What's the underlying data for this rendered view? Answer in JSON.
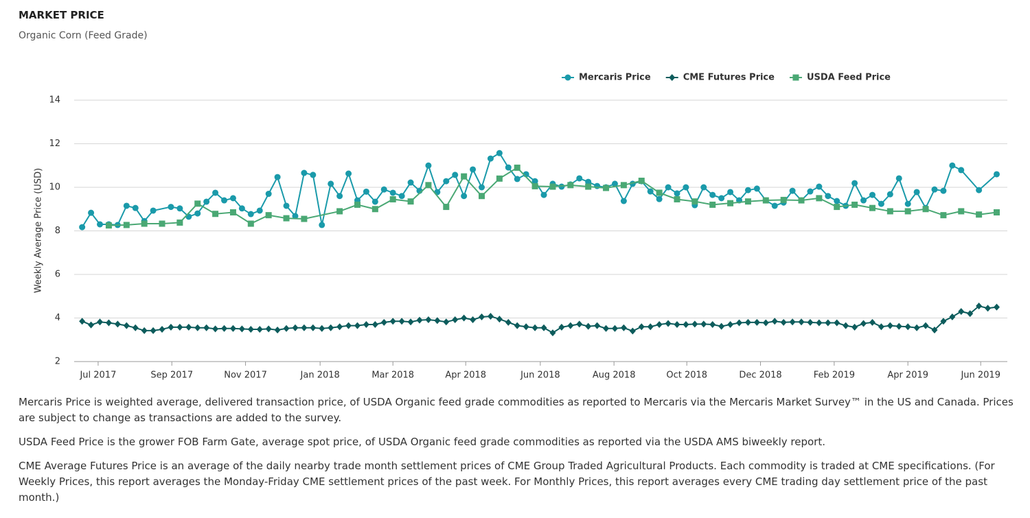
{
  "header": {
    "title": "MARKET PRICE",
    "subtitle": "Organic Corn (Feed Grade)"
  },
  "chart_data": {
    "type": "line",
    "y_label": "Weekly Average Price (USD)",
    "grid": true,
    "xlim": [
      -0.9,
      104.2
    ],
    "ylim": [
      2,
      14
    ],
    "yticks": [
      2,
      4,
      6,
      8,
      10,
      12,
      14
    ],
    "xticks": [
      {
        "value": 1.8,
        "label": "Jul 2017"
      },
      {
        "value": 10.1,
        "label": "Sep 2017"
      },
      {
        "value": 18.4,
        "label": "Nov 2017"
      },
      {
        "value": 26.8,
        "label": "Jan 2018"
      },
      {
        "value": 35.0,
        "label": "Mar 2018"
      },
      {
        "value": 43.2,
        "label": "Apr 2018"
      },
      {
        "value": 51.6,
        "label": "Jun 2018"
      },
      {
        "value": 59.9,
        "label": "Aug 2018"
      },
      {
        "value": 68.1,
        "label": "Oct 2018"
      },
      {
        "value": 76.4,
        "label": "Dec 2018"
      },
      {
        "value": 84.7,
        "label": "Feb 2019"
      },
      {
        "value": 93.0,
        "label": "Apr 2019"
      },
      {
        "value": 101.2,
        "label": "Jun 2019"
      }
    ],
    "series": [
      {
        "name": "Mercaris Price",
        "color": "#1a9aaa",
        "marker": "circle",
        "x": [
          0,
          1,
          2,
          3,
          4,
          5,
          6,
          7,
          8,
          10,
          11,
          12,
          13,
          14,
          15,
          16,
          17,
          18,
          19,
          20,
          21,
          22,
          23,
          24,
          25,
          26,
          27,
          28,
          29,
          30,
          31,
          32,
          33,
          34,
          35,
          36,
          37,
          38,
          39,
          40,
          41,
          42,
          43,
          44,
          45,
          46,
          47,
          48,
          49,
          50,
          51,
          52,
          53,
          54,
          55,
          56,
          57,
          58,
          59,
          60,
          61,
          62,
          63,
          64,
          65,
          66,
          67,
          68,
          69,
          70,
          71,
          72,
          73,
          74,
          75,
          76,
          77,
          78,
          79,
          80,
          81,
          82,
          83,
          84,
          85,
          86,
          87,
          88,
          89,
          90,
          91,
          92,
          93,
          94,
          95,
          96,
          97,
          98,
          99,
          101,
          103
        ],
        "values": [
          8.17,
          8.83,
          8.3,
          8.3,
          8.27,
          9.15,
          9.05,
          8.45,
          8.93,
          9.1,
          9.03,
          8.65,
          8.8,
          9.34,
          9.75,
          9.4,
          9.5,
          9.03,
          8.77,
          8.93,
          9.7,
          10.47,
          9.15,
          8.68,
          10.66,
          10.57,
          8.27,
          10.16,
          9.6,
          10.63,
          9.4,
          9.8,
          9.34,
          9.9,
          9.75,
          9.6,
          10.22,
          9.84,
          11,
          9.78,
          10.28,
          10.57,
          9.6,
          10.82,
          10,
          11.32,
          11.57,
          10.91,
          10.38,
          10.6,
          10.28,
          9.65,
          10.16,
          10.03,
          10.13,
          10.41,
          10.25,
          10.06,
          10,
          10.16,
          9.37,
          10.16,
          10.28,
          9.81,
          9.46,
          10,
          9.72,
          10,
          9.18,
          10,
          9.65,
          9.5,
          9.78,
          9.4,
          9.87,
          9.94,
          9.4,
          9.15,
          9.3,
          9.84,
          9.4,
          9.81,
          10.03,
          9.6,
          9.37,
          9.15,
          10.19,
          9.4,
          9.65,
          9.24,
          9.68,
          10.41,
          9.24,
          9.78,
          9.05,
          9.9,
          9.84,
          11,
          10.79,
          9.87,
          10.6
        ]
      },
      {
        "name": "CME Futures Price",
        "color": "#0d5c5c",
        "marker": "diamond",
        "x": [
          0,
          1,
          2,
          3,
          4,
          5,
          6,
          7,
          8,
          9,
          10,
          11,
          12,
          13,
          14,
          15,
          16,
          17,
          18,
          19,
          20,
          21,
          22,
          23,
          24,
          25,
          26,
          27,
          28,
          29,
          30,
          31,
          32,
          33,
          34,
          35,
          36,
          37,
          38,
          39,
          40,
          41,
          42,
          43,
          44,
          45,
          46,
          47,
          48,
          49,
          50,
          51,
          52,
          53,
          54,
          55,
          56,
          57,
          58,
          59,
          60,
          61,
          62,
          63,
          64,
          65,
          66,
          67,
          68,
          69,
          70,
          71,
          72,
          73,
          74,
          75,
          76,
          77,
          78,
          79,
          80,
          81,
          82,
          83,
          84,
          85,
          86,
          87,
          88,
          89,
          90,
          91,
          92,
          93,
          94,
          95,
          96,
          97,
          98,
          99,
          100,
          101,
          102,
          103
        ],
        "values": [
          3.85,
          3.68,
          3.82,
          3.78,
          3.72,
          3.65,
          3.55,
          3.42,
          3.42,
          3.48,
          3.58,
          3.58,
          3.58,
          3.55,
          3.55,
          3.5,
          3.52,
          3.52,
          3.5,
          3.48,
          3.48,
          3.5,
          3.45,
          3.52,
          3.55,
          3.55,
          3.55,
          3.52,
          3.55,
          3.6,
          3.65,
          3.65,
          3.7,
          3.7,
          3.8,
          3.85,
          3.85,
          3.82,
          3.9,
          3.92,
          3.88,
          3.82,
          3.92,
          4,
          3.92,
          4.05,
          4.08,
          3.95,
          3.8,
          3.65,
          3.6,
          3.55,
          3.55,
          3.32,
          3.58,
          3.65,
          3.72,
          3.62,
          3.65,
          3.52,
          3.52,
          3.55,
          3.4,
          3.6,
          3.6,
          3.7,
          3.75,
          3.7,
          3.7,
          3.72,
          3.72,
          3.7,
          3.62,
          3.7,
          3.78,
          3.8,
          3.8,
          3.78,
          3.85,
          3.8,
          3.82,
          3.82,
          3.8,
          3.78,
          3.78,
          3.78,
          3.65,
          3.58,
          3.75,
          3.8,
          3.6,
          3.65,
          3.62,
          3.6,
          3.55,
          3.65,
          3.45,
          3.85,
          4.05,
          4.3,
          4.2,
          4.55,
          4.45,
          4.5
        ]
      },
      {
        "name": "USDA Feed Price",
        "color": "#4aa874",
        "marker": "square",
        "x": [
          3,
          5,
          7,
          9,
          11,
          13,
          15,
          17,
          19,
          21,
          23,
          25,
          29,
          31,
          33,
          35,
          37,
          39,
          41,
          43,
          45,
          47,
          49,
          51,
          53,
          55,
          57,
          59,
          61,
          63,
          65,
          67,
          69,
          71,
          73,
          75,
          77,
          79,
          81,
          83,
          85,
          87,
          89,
          91,
          93,
          95,
          97,
          99,
          101,
          103
        ],
        "values": [
          8.25,
          8.27,
          8.33,
          8.33,
          8.38,
          9.25,
          8.78,
          8.85,
          8.33,
          8.72,
          8.58,
          8.55,
          8.9,
          9.2,
          9,
          9.45,
          9.35,
          10.1,
          9.1,
          10.5,
          9.6,
          10.4,
          10.9,
          10.05,
          10.03,
          10.1,
          10.03,
          9.97,
          10.1,
          10.3,
          9.75,
          9.45,
          9.35,
          9.2,
          9.27,
          9.35,
          9.4,
          9.42,
          9.4,
          9.5,
          9.1,
          9.2,
          9.05,
          8.9,
          8.9,
          9,
          8.72,
          8.9,
          8.75,
          8.85
        ]
      }
    ]
  },
  "notes": [
    "Mercaris Price is weighted average, delivered transaction price, of USDA Organic feed grade commodities as reported to Mercaris via the Mercaris Market Survey™ in the US and Canada. Prices are subject to change as transactions are added to the survey.",
    "USDA Feed Price is the grower FOB Farm Gate, average spot price, of USDA Organic feed grade commodities as reported via the USDA AMS biweekly report.",
    "CME Average Futures Price is an average of the daily nearby trade month settlement prices of CME Group Traded Agricultural Products. Each commodity is traded at CME specifications. (For Weekly Prices, this report averages the Monday-Friday CME settlement prices of the past week. For Monthly Prices, this report averages every CME trading day settlement price of the past month.)"
  ]
}
